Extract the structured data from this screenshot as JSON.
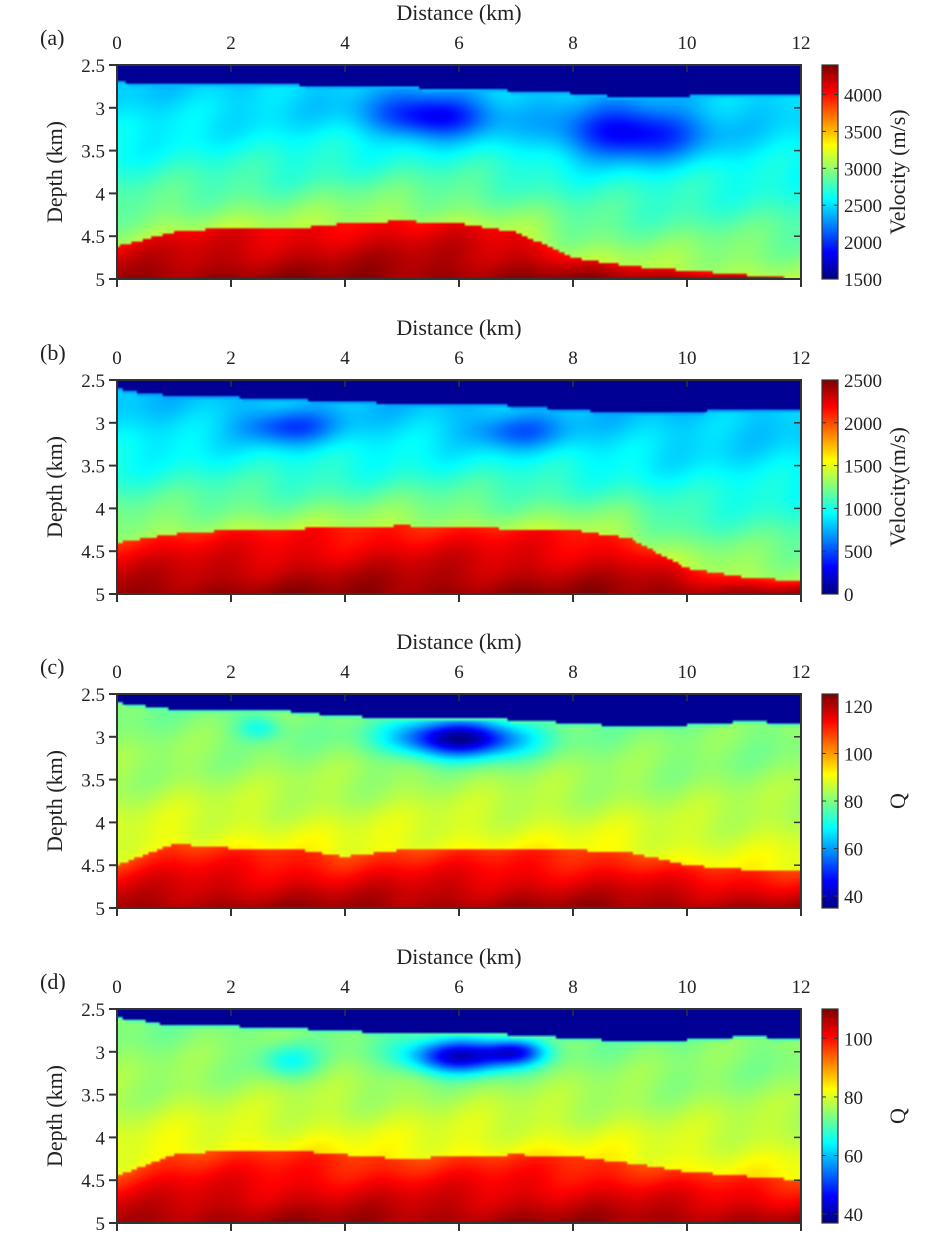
{
  "chart_data": [
    {
      "type": "heatmap",
      "panel_label": "(a)",
      "xlabel": "Distance (km)",
      "ylabel": "Depth (km)",
      "colorbar_label": "Velocity (m/s)",
      "xlim": [
        0,
        12
      ],
      "ylim": [
        2.5,
        5
      ],
      "y_reversed": true,
      "xticks": [
        0,
        2,
        4,
        6,
        8,
        10,
        12
      ],
      "xtick_labels": [
        "0",
        "2",
        "4",
        "6",
        "8",
        "10",
        "12"
      ],
      "yticks": [
        2.5,
        3,
        3.5,
        4,
        4.5,
        5
      ],
      "ytick_labels": [
        "2.5",
        "3",
        "3.5",
        "4",
        "4.5",
        "5"
      ],
      "clim": [
        1500,
        4400
      ],
      "cticks": [
        1500,
        2000,
        2500,
        3000,
        3500,
        4000
      ],
      "ctick_labels": [
        "1500",
        "2000",
        "2500",
        "3000",
        "3500",
        "4000"
      ],
      "colormap": "jet",
      "field": {
        "water_bottom_depth": [
          [
            0,
            2.7
          ],
          [
            1,
            2.72
          ],
          [
            2,
            2.72
          ],
          [
            3,
            2.73
          ],
          [
            4,
            2.75
          ],
          [
            5,
            2.76
          ],
          [
            6,
            2.78
          ],
          [
            7,
            2.8
          ],
          [
            8,
            2.83
          ],
          [
            9,
            2.88
          ],
          [
            10,
            2.86
          ],
          [
            11,
            2.84
          ],
          [
            12,
            2.84
          ]
        ],
        "high_top_depth": [
          [
            0,
            4.62
          ],
          [
            1,
            4.45
          ],
          [
            2,
            4.4
          ],
          [
            3,
            4.42
          ],
          [
            4,
            4.35
          ],
          [
            5,
            4.32
          ],
          [
            6,
            4.35
          ],
          [
            7,
            4.45
          ],
          [
            8,
            4.75
          ],
          [
            9,
            4.85
          ],
          [
            10,
            4.9
          ],
          [
            11,
            4.95
          ],
          [
            12,
            5.0
          ]
        ],
        "low_anomaly": [
          [
            5.5,
            3.1,
            1.0,
            0.25,
            0.25
          ],
          [
            9.0,
            3.3,
            1.2,
            0.3,
            0.25
          ]
        ],
        "water_value": 0.02,
        "seabed_value": 0.3,
        "gradient_start_value": 0.33,
        "mid_value": 0.55,
        "high_value": 0.88,
        "max_value": 0.98
      }
    },
    {
      "type": "heatmap",
      "panel_label": "(b)",
      "xlabel": "Distance (km)",
      "ylabel": "Depth (km)",
      "colorbar_label": "Velocity(m/s)",
      "xlim": [
        0,
        12
      ],
      "ylim": [
        2.5,
        5
      ],
      "y_reversed": true,
      "xticks": [
        0,
        2,
        4,
        6,
        8,
        10,
        12
      ],
      "xtick_labels": [
        "0",
        "2",
        "4",
        "6",
        "8",
        "10",
        "12"
      ],
      "yticks": [
        2.5,
        3,
        3.5,
        4,
        4.5,
        5
      ],
      "ytick_labels": [
        "2.5",
        "3",
        "3.5",
        "4",
        "4.5",
        "5"
      ],
      "clim": [
        0,
        2500
      ],
      "cticks": [
        0,
        500,
        1000,
        1500,
        2000,
        2500
      ],
      "ctick_labels": [
        "0",
        "500",
        "1000",
        "1500",
        "2000",
        "2500"
      ],
      "colormap": "jet",
      "field": {
        "water_bottom_depth": [
          [
            0,
            2.6
          ],
          [
            0.5,
            2.66
          ],
          [
            1,
            2.68
          ],
          [
            2,
            2.7
          ],
          [
            3,
            2.72
          ],
          [
            4,
            2.76
          ],
          [
            5,
            2.77
          ],
          [
            6,
            2.78
          ],
          [
            7,
            2.8
          ],
          [
            8,
            2.85
          ],
          [
            9,
            2.88
          ],
          [
            10,
            2.87
          ],
          [
            11,
            2.84
          ],
          [
            12,
            2.84
          ]
        ],
        "high_top_depth": [
          [
            0,
            4.4
          ],
          [
            1,
            4.3
          ],
          [
            2,
            4.25
          ],
          [
            3,
            4.24
          ],
          [
            4,
            4.22
          ],
          [
            5,
            4.2
          ],
          [
            6,
            4.22
          ],
          [
            7,
            4.24
          ],
          [
            8,
            4.25
          ],
          [
            9,
            4.35
          ],
          [
            10,
            4.7
          ],
          [
            11,
            4.8
          ],
          [
            12,
            4.85
          ]
        ],
        "low_anomaly": [
          [
            3.0,
            3.05,
            0.8,
            0.2,
            0.15
          ],
          [
            7.0,
            3.1,
            0.8,
            0.2,
            0.12
          ]
        ],
        "water_value": 0.02,
        "seabed_value": 0.28,
        "gradient_start_value": 0.32,
        "mid_value": 0.55,
        "high_value": 0.85,
        "max_value": 0.98
      }
    },
    {
      "type": "heatmap",
      "panel_label": "(c)",
      "xlabel": "Distance (km)",
      "ylabel": "Depth (km)",
      "colorbar_label": "Q",
      "xlim": [
        0,
        12
      ],
      "ylim": [
        2.5,
        5
      ],
      "y_reversed": true,
      "xticks": [
        0,
        2,
        4,
        6,
        8,
        10,
        12
      ],
      "xtick_labels": [
        "0",
        "2",
        "4",
        "6",
        "8",
        "10",
        "12"
      ],
      "yticks": [
        2.5,
        3,
        3.5,
        4,
        4.5,
        5
      ],
      "ytick_labels": [
        "2.5",
        "3",
        "3.5",
        "4",
        "4.5",
        "5"
      ],
      "clim": [
        35,
        125
      ],
      "cticks": [
        40,
        60,
        80,
        100,
        120
      ],
      "ctick_labels": [
        "40",
        "60",
        "80",
        "100",
        "120"
      ],
      "colormap": "jet",
      "field": {
        "water_bottom_depth": [
          [
            0,
            2.6
          ],
          [
            0.5,
            2.64
          ],
          [
            1,
            2.68
          ],
          [
            2,
            2.7
          ],
          [
            3,
            2.7
          ],
          [
            4,
            2.76
          ],
          [
            5,
            2.78
          ],
          [
            6,
            2.78
          ],
          [
            7,
            2.8
          ],
          [
            8,
            2.84
          ],
          [
            9,
            2.88
          ],
          [
            10,
            2.86
          ],
          [
            11,
            2.82
          ],
          [
            12,
            2.84
          ]
        ],
        "high_top_depth": [
          [
            0,
            4.5
          ],
          [
            1,
            4.25
          ],
          [
            2,
            4.3
          ],
          [
            3,
            4.3
          ],
          [
            4,
            4.4
          ],
          [
            5,
            4.32
          ],
          [
            6,
            4.3
          ],
          [
            7,
            4.3
          ],
          [
            8,
            4.32
          ],
          [
            9,
            4.35
          ],
          [
            10,
            4.5
          ],
          [
            11,
            4.55
          ],
          [
            12,
            4.55
          ]
        ],
        "low_anomaly": [
          [
            6.0,
            3.02,
            1.1,
            0.22,
            0.5
          ],
          [
            2.5,
            2.9,
            0.4,
            0.15,
            0.12
          ]
        ],
        "water_value": 0.02,
        "seabed_value": 0.45,
        "gradient_start_value": 0.5,
        "mid_value": 0.62,
        "high_value": 0.82,
        "max_value": 0.97
      }
    },
    {
      "type": "heatmap",
      "panel_label": "(d)",
      "xlabel": "Distance (km)",
      "ylabel": "Depth (km)",
      "colorbar_label": "Q",
      "xlim": [
        0,
        12
      ],
      "ylim": [
        2.5,
        5
      ],
      "y_reversed": true,
      "xticks": [
        0,
        2,
        4,
        6,
        8,
        10,
        12
      ],
      "xtick_labels": [
        "0",
        "2",
        "4",
        "6",
        "8",
        "10",
        "12"
      ],
      "yticks": [
        2.5,
        3,
        3.5,
        4,
        4.5,
        5
      ],
      "ytick_labels": [
        "2.5",
        "3",
        "3.5",
        "4",
        "4.5",
        "5"
      ],
      "clim": [
        37,
        110
      ],
      "cticks": [
        40,
        60,
        80,
        100
      ],
      "ctick_labels": [
        "40",
        "60",
        "80",
        "100"
      ],
      "colormap": "jet",
      "field": {
        "water_bottom_depth": [
          [
            0,
            2.6
          ],
          [
            0.5,
            2.64
          ],
          [
            1,
            2.7
          ],
          [
            2,
            2.7
          ],
          [
            3,
            2.72
          ],
          [
            4,
            2.76
          ],
          [
            5,
            2.78
          ],
          [
            6,
            2.78
          ],
          [
            7,
            2.8
          ],
          [
            8,
            2.84
          ],
          [
            9,
            2.88
          ],
          [
            10,
            2.86
          ],
          [
            11,
            2.82
          ],
          [
            12,
            2.84
          ]
        ],
        "high_top_depth": [
          [
            0,
            4.45
          ],
          [
            1,
            4.2
          ],
          [
            2,
            4.15
          ],
          [
            3,
            4.15
          ],
          [
            4,
            4.2
          ],
          [
            5,
            4.25
          ],
          [
            6,
            4.22
          ],
          [
            7,
            4.2
          ],
          [
            8,
            4.22
          ],
          [
            9,
            4.3
          ],
          [
            10,
            4.4
          ],
          [
            11,
            4.45
          ],
          [
            12,
            4.5
          ]
        ],
        "low_anomaly": [
          [
            6.0,
            3.05,
            0.9,
            0.2,
            0.45
          ],
          [
            7.0,
            3.0,
            0.5,
            0.15,
            0.3
          ],
          [
            3.0,
            3.1,
            0.5,
            0.2,
            0.12
          ]
        ],
        "water_value": 0.02,
        "seabed_value": 0.45,
        "gradient_start_value": 0.5,
        "mid_value": 0.63,
        "high_value": 0.82,
        "max_value": 0.97
      }
    }
  ]
}
